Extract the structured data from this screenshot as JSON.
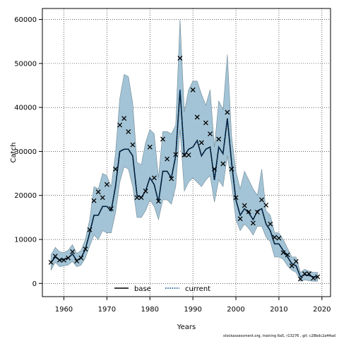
{
  "chart_data": {
    "type": "line",
    "title": "",
    "xlabel": "Years",
    "ylabel": "Catch",
    "xlim": [
      1955,
      2022
    ],
    "ylim": [
      -3000,
      62500
    ],
    "x_ticks": [
      1960,
      1970,
      1980,
      1990,
      2000,
      2010,
      2020
    ],
    "y_ticks": [
      0,
      10000,
      20000,
      30000,
      40000,
      50000,
      60000
    ],
    "grid": true,
    "legend_position": "bottom-center",
    "colors": {
      "band": "#a3c4d6",
      "band_edge": "#6f8895",
      "base": "#000000",
      "current": "#00407a",
      "points": "#000000"
    },
    "series": [
      {
        "name": "base",
        "style": "solid",
        "x": [
          1957,
          1958,
          1959,
          1960,
          1961,
          1962,
          1963,
          1964,
          1965,
          1966,
          1967,
          1968,
          1969,
          1970,
          1971,
          1972,
          1973,
          1974,
          1975,
          1976,
          1977,
          1978,
          1979,
          1980,
          1981,
          1982,
          1983,
          1984,
          1985,
          1986,
          1987,
          1988,
          1989,
          1990,
          1991,
          1992,
          1993,
          1994,
          1995,
          1996,
          1997,
          1998,
          1999,
          2000,
          2001,
          2002,
          2003,
          2004,
          2005,
          2006,
          2007,
          2008,
          2009,
          2010,
          2011,
          2012,
          2013,
          2014,
          2015,
          2016,
          2017,
          2018,
          2019
        ],
        "y": [
          4800,
          6000,
          5300,
          5500,
          5800,
          6700,
          5200,
          5800,
          7800,
          11500,
          15500,
          15500,
          17500,
          17500,
          16500,
          22000,
          30000,
          30500,
          30500,
          29000,
          20000,
          19500,
          21000,
          24000,
          22500,
          18500,
          25500,
          25500,
          24000,
          29000,
          44000,
          29000,
          30500,
          31000,
          32500,
          29000,
          30500,
          31000,
          23500,
          31000,
          29500,
          37500,
          27500,
          19000,
          15500,
          17000,
          16000,
          14500,
          16500,
          17000,
          13500,
          12000,
          9000,
          9000,
          7500,
          6000,
          4500,
          4000,
          1500,
          2000,
          1800,
          1500,
          1500
        ]
      },
      {
        "name": "current",
        "style": "dotted",
        "x": [
          1957,
          1958,
          1959,
          1960,
          1961,
          1962,
          1963,
          1964,
          1965,
          1966,
          1967,
          1968,
          1969,
          1970,
          1971,
          1972,
          1973,
          1974,
          1975,
          1976,
          1977,
          1978,
          1979,
          1980,
          1981,
          1982,
          1983,
          1984,
          1985,
          1986,
          1987,
          1988,
          1989,
          1990,
          1991,
          1992,
          1993,
          1994,
          1995,
          1996,
          1997,
          1998,
          1999,
          2000,
          2001,
          2002,
          2003,
          2004,
          2005,
          2006,
          2007,
          2008,
          2009,
          2010,
          2011,
          2012,
          2013,
          2014,
          2015,
          2016,
          2017,
          2018,
          2019
        ],
        "y": [
          4800,
          6000,
          5300,
          5500,
          5800,
          6700,
          5200,
          5800,
          7800,
          11500,
          15500,
          15500,
          17500,
          17500,
          16500,
          22000,
          30000,
          30500,
          30500,
          29000,
          20000,
          19500,
          21000,
          24000,
          22500,
          18500,
          25500,
          25500,
          24000,
          29000,
          44000,
          29000,
          30500,
          31000,
          32500,
          29000,
          30500,
          31000,
          23500,
          31000,
          29500,
          37500,
          27500,
          19000,
          15500,
          17000,
          16000,
          14500,
          16500,
          17000,
          13500,
          12000,
          9000,
          9000,
          7500,
          6000,
          4500,
          4000,
          1500,
          2000,
          1800,
          1500,
          1500
        ]
      }
    ],
    "band": {
      "x": [
        1957,
        1958,
        1959,
        1960,
        1961,
        1962,
        1963,
        1964,
        1965,
        1966,
        1967,
        1968,
        1969,
        1970,
        1971,
        1972,
        1973,
        1974,
        1975,
        1976,
        1977,
        1978,
        1979,
        1980,
        1981,
        1982,
        1983,
        1984,
        1985,
        1986,
        1987,
        1988,
        1989,
        1990,
        1991,
        1992,
        1993,
        1994,
        1995,
        1996,
        1997,
        1998,
        1999,
        2000,
        2001,
        2002,
        2003,
        2004,
        2005,
        2006,
        2007,
        2008,
        2009,
        2010,
        2011,
        2012,
        2013,
        2014,
        2015,
        2016,
        2017,
        2018,
        2019
      ],
      "lower": [
        3000,
        4800,
        3800,
        4000,
        4200,
        5000,
        3800,
        4200,
        5800,
        8500,
        11000,
        10000,
        12000,
        11500,
        11500,
        16000,
        23000,
        26500,
        26000,
        22000,
        15000,
        15000,
        16500,
        19000,
        17500,
        14500,
        19000,
        19000,
        18000,
        22000,
        35000,
        21000,
        23000,
        24000,
        23000,
        22000,
        23500,
        24500,
        18500,
        23500,
        22000,
        29000,
        22500,
        14500,
        12000,
        13500,
        12500,
        11000,
        13000,
        13000,
        10500,
        9500,
        6000,
        6000,
        5500,
        4000,
        3000,
        2500,
        500,
        800,
        600,
        500,
        500
      ],
      "upper": [
        6500,
        8200,
        7200,
        7000,
        7500,
        8800,
        6800,
        7500,
        10000,
        14500,
        22000,
        21500,
        25000,
        24500,
        22000,
        29500,
        42000,
        47500,
        47000,
        41000,
        27500,
        27000,
        32000,
        35000,
        34000,
        24000,
        34500,
        34500,
        34000,
        36000,
        60000,
        39000,
        44000,
        46000,
        46000,
        43000,
        40500,
        44000,
        31000,
        41500,
        39500,
        52000,
        33500,
        25500,
        21500,
        25500,
        23500,
        21500,
        20000,
        26000,
        16500,
        15500,
        11500,
        11500,
        10000,
        8000,
        6000,
        6000,
        2500,
        3200,
        2800,
        2500,
        2500
      ]
    },
    "points": {
      "marker": "x",
      "x": [
        1957,
        1958,
        1959,
        1960,
        1961,
        1962,
        1963,
        1964,
        1965,
        1966,
        1967,
        1968,
        1969,
        1970,
        1971,
        1972,
        1973,
        1974,
        1975,
        1976,
        1977,
        1978,
        1979,
        1980,
        1981,
        1982,
        1983,
        1984,
        1985,
        1986,
        1987,
        1988,
        1989,
        1990,
        1991,
        1992,
        1993,
        1994,
        1995,
        1996,
        1997,
        1998,
        1999,
        2000,
        2001,
        2002,
        2003,
        2004,
        2005,
        2006,
        2007,
        2008,
        2009,
        2010,
        2011,
        2012,
        2013,
        2014,
        2015,
        2016,
        2017,
        2018,
        2019
      ],
      "y": [
        4800,
        6200,
        5300,
        5300,
        5800,
        7200,
        5100,
        5800,
        7800,
        12200,
        18800,
        20800,
        19500,
        22500,
        17000,
        26000,
        36000,
        37500,
        34500,
        31500,
        19500,
        19500,
        21000,
        31000,
        24000,
        18700,
        32800,
        28300,
        23800,
        29300,
        51200,
        29200,
        29200,
        44000,
        37800,
        32000,
        36500,
        34000,
        26000,
        32800,
        27200,
        38900,
        26000,
        19500,
        14700,
        17700,
        16300,
        13700,
        16200,
        19000,
        17800,
        13500,
        10500,
        10300,
        7000,
        6500,
        4000,
        5000,
        1000,
        2200,
        2200,
        1200,
        1500
      ]
    },
    "legend": [
      "base",
      "current"
    ]
  },
  "footer": {
    "note": "stockassessment.org, training  6a5,  r13276 ,  git: c28bdc2a44ad"
  }
}
